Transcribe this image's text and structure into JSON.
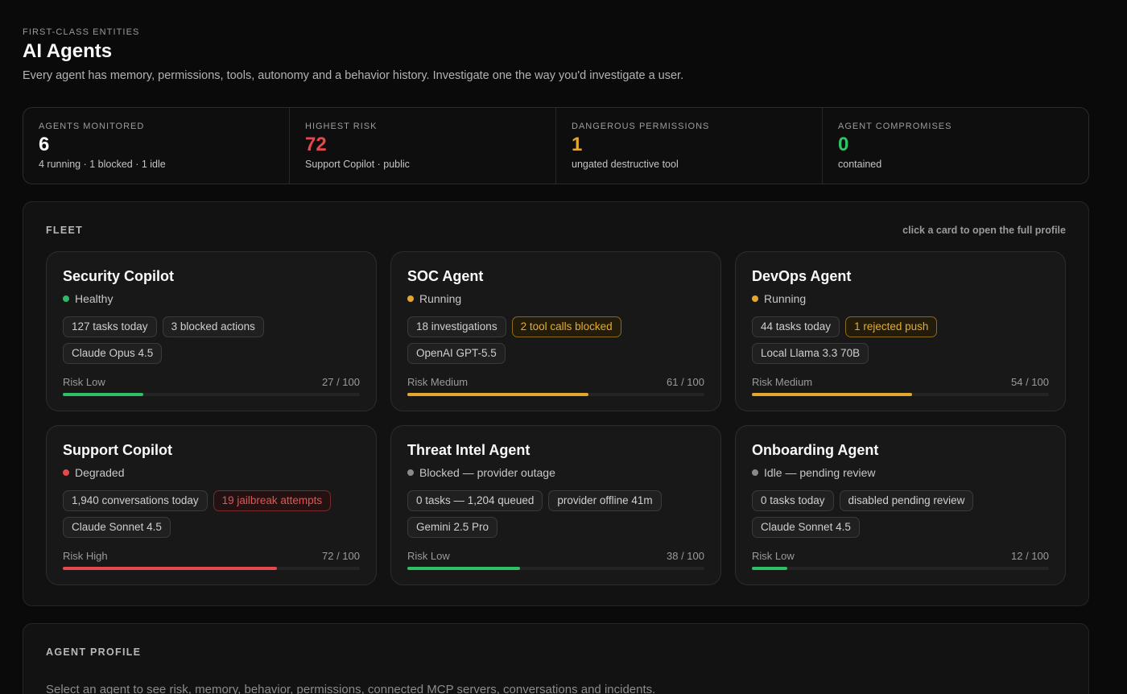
{
  "header": {
    "eyebrow": "FIRST-CLASS ENTITIES",
    "title": "AI Agents",
    "subtitle": "Every agent has memory, permissions, tools, autonomy and a behavior history. Investigate one the way you'd investigate a user."
  },
  "stats": [
    {
      "label": "AGENTS MONITORED",
      "value": "6",
      "sub": "4 running · 1 blocked · 1 idle",
      "color": "#fafafa"
    },
    {
      "label": "HIGHEST RISK",
      "value": "72",
      "sub": "Support Copilot · public",
      "color": "#e5484d"
    },
    {
      "label": "DANGEROUS PERMISSIONS",
      "value": "1",
      "sub": "ungated destructive tool",
      "color": "#e3a72f"
    },
    {
      "label": "AGENT COMPROMISES",
      "value": "0",
      "sub": "contained",
      "color": "#30c46a"
    }
  ],
  "fleet": {
    "label": "FLEET",
    "hint": "click a card to open the full profile",
    "agents": [
      {
        "name": "Security Copilot",
        "status": "Healthy",
        "status_color": "#30b868",
        "chips": [
          {
            "text": "127 tasks today",
            "tone": "neutral"
          },
          {
            "text": "3 blocked actions",
            "tone": "neutral"
          },
          {
            "text": "Claude Opus 4.5",
            "tone": "neutral"
          }
        ],
        "risk_label": "Risk Low",
        "risk_score": "27 / 100",
        "risk_value": 27,
        "risk_color": "#2fbf64"
      },
      {
        "name": "SOC Agent",
        "status": "Running",
        "status_color": "#e3a72f",
        "chips": [
          {
            "text": "18 investigations",
            "tone": "neutral"
          },
          {
            "text": "2 tool calls blocked",
            "tone": "warn"
          },
          {
            "text": "OpenAI GPT-5.5",
            "tone": "neutral"
          }
        ],
        "risk_label": "Risk Medium",
        "risk_score": "61 / 100",
        "risk_value": 61,
        "risk_color": "#e3a72f"
      },
      {
        "name": "DevOps Agent",
        "status": "Running",
        "status_color": "#e3a72f",
        "chips": [
          {
            "text": "44 tasks today",
            "tone": "neutral"
          },
          {
            "text": "1 rejected push",
            "tone": "warn"
          },
          {
            "text": "Local Llama 3.3 70B",
            "tone": "neutral"
          }
        ],
        "risk_label": "Risk Medium",
        "risk_score": "54 / 100",
        "risk_value": 54,
        "risk_color": "#e3a72f"
      },
      {
        "name": "Support Copilot",
        "status": "Degraded",
        "status_color": "#e5484d",
        "chips": [
          {
            "text": "1,940 conversations today",
            "tone": "neutral"
          },
          {
            "text": "19 jailbreak attempts",
            "tone": "danger"
          },
          {
            "text": "Claude Sonnet 4.5",
            "tone": "neutral"
          }
        ],
        "risk_label": "Risk High",
        "risk_score": "72 / 100",
        "risk_value": 72,
        "risk_color": "#e5484d"
      },
      {
        "name": "Threat Intel Agent",
        "status": "Blocked — provider outage",
        "status_color": "#8a8a8a",
        "chips": [
          {
            "text": "0 tasks — 1,204 queued",
            "tone": "neutral"
          },
          {
            "text": "provider offline 41m",
            "tone": "neutral"
          },
          {
            "text": "Gemini 2.5 Pro",
            "tone": "neutral"
          }
        ],
        "risk_label": "Risk Low",
        "risk_score": "38 / 100",
        "risk_value": 38,
        "risk_color": "#2fbf64"
      },
      {
        "name": "Onboarding Agent",
        "status": "Idle — pending review",
        "status_color": "#8a8a8a",
        "chips": [
          {
            "text": "0 tasks today",
            "tone": "neutral"
          },
          {
            "text": "disabled pending review",
            "tone": "neutral"
          },
          {
            "text": "Claude Sonnet 4.5",
            "tone": "neutral"
          }
        ],
        "risk_label": "Risk Low",
        "risk_score": "12 / 100",
        "risk_value": 12,
        "risk_color": "#2fbf64"
      }
    ]
  },
  "profile": {
    "label": "AGENT PROFILE",
    "hint": "Select an agent to see risk, memory, behavior, permissions, connected MCP servers, conversations and incidents."
  }
}
